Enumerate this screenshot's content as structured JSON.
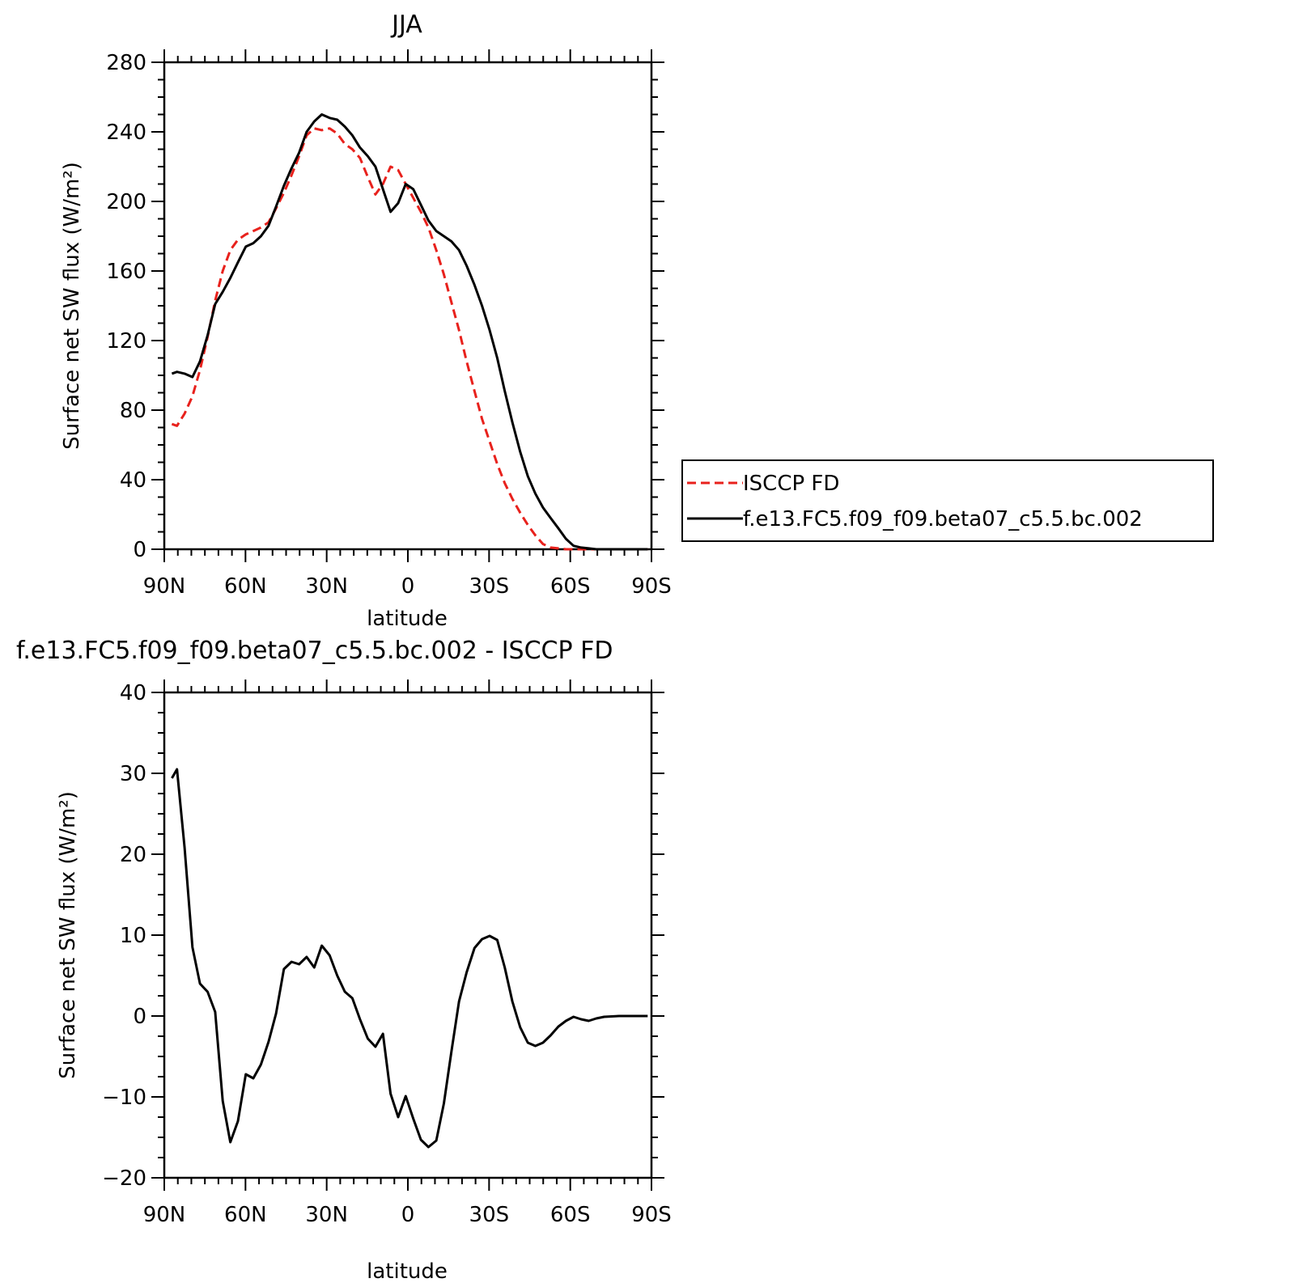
{
  "chart_data": [
    {
      "type": "line",
      "title": "JJA",
      "xlabel": "latitude",
      "ylabel": "Surface net SW flux (W/m²)",
      "xlim": [
        90,
        -90
      ],
      "ylim": [
        0,
        280
      ],
      "yticks": [
        0,
        40,
        80,
        120,
        160,
        200,
        240,
        280
      ],
      "xticks": [
        90,
        60,
        30,
        0,
        -30,
        -60,
        -90
      ],
      "xtick_labels": [
        "90N",
        "60N",
        "30N",
        "0",
        "30S",
        "60S",
        "90S"
      ],
      "legend_position": "right",
      "series": [
        {
          "name": "ISCCP FD",
          "color": "#e8211c",
          "dash": "dashed",
          "x": [
            87.2,
            85.3,
            82.5,
            79.6,
            76.8,
            74.0,
            71.2,
            68.4,
            65.6,
            62.8,
            59.9,
            57.1,
            54.3,
            51.5,
            48.7,
            45.8,
            43.0,
            40.2,
            37.4,
            34.6,
            31.8,
            28.9,
            26.1,
            23.3,
            20.5,
            17.7,
            14.8,
            12.0,
            9.2,
            6.4,
            3.6,
            0.8,
            -2.0,
            -4.8,
            -7.6,
            -10.5,
            -13.3,
            -16.1,
            -18.9,
            -21.7,
            -24.6,
            -27.4,
            -30.2,
            -33.0,
            -35.8,
            -38.6,
            -41.5,
            -44.3,
            -47.1,
            -49.9,
            -52.7,
            -55.6,
            -58.4,
            -61.2,
            -64.0,
            -66.8,
            -69.6,
            -72.5,
            -75.3,
            -78.1,
            -80.9,
            -83.7,
            -86.6,
            -88.6
          ],
          "y": [
            72,
            71,
            78,
            88,
            103,
            122,
            143,
            160,
            172,
            178,
            181,
            183,
            185,
            188,
            196,
            205,
            215,
            226,
            238,
            242,
            241,
            242,
            239,
            233,
            230,
            225,
            214,
            204,
            210,
            220,
            218,
            210,
            202,
            194,
            185,
            172,
            158,
            142,
            126,
            108,
            91,
            75,
            62,
            49,
            38,
            29,
            21,
            14,
            8,
            3,
            1,
            0.5,
            0,
            0,
            0,
            0,
            0,
            0,
            0,
            0,
            0,
            0,
            0,
            0
          ]
        },
        {
          "name": "f.e13.FC5.f09_f09.beta07_c5.5.bc.002",
          "color": "#000000",
          "dash": "solid",
          "x": [
            87.2,
            85.3,
            82.5,
            79.6,
            76.8,
            74.0,
            71.2,
            68.4,
            65.6,
            62.8,
            59.9,
            57.1,
            54.3,
            51.5,
            48.7,
            45.8,
            43.0,
            40.2,
            37.4,
            34.6,
            31.8,
            28.9,
            26.1,
            23.3,
            20.5,
            17.7,
            14.8,
            12.0,
            9.2,
            6.4,
            3.6,
            0.8,
            -2.0,
            -4.8,
            -7.6,
            -10.5,
            -13.3,
            -16.1,
            -18.9,
            -21.7,
            -24.6,
            -27.4,
            -30.2,
            -33.0,
            -35.8,
            -38.6,
            -41.5,
            -44.3,
            -47.1,
            -49.9,
            -52.7,
            -55.6,
            -58.4,
            -61.2,
            -64.0,
            -66.8,
            -69.6,
            -72.5,
            -75.3,
            -78.1,
            -80.9,
            -83.7,
            -86.6,
            -88.6
          ],
          "y": [
            101,
            102,
            101,
            99,
            108,
            123,
            141,
            148,
            156,
            165,
            174,
            176,
            180,
            186,
            197,
            209,
            219,
            228,
            240,
            246,
            250,
            248,
            247,
            243,
            238,
            231,
            226,
            220,
            207,
            194,
            199,
            210,
            207,
            198,
            189,
            183,
            180,
            177,
            172,
            163,
            152,
            140,
            126,
            110,
            91,
            73,
            56,
            42,
            32,
            24,
            18,
            12,
            6,
            2,
            1,
            0.5,
            0,
            0,
            0,
            0,
            0,
            0,
            0,
            0
          ]
        }
      ]
    },
    {
      "type": "line",
      "title": "f.e13.FC5.f09_f09.beta07_c5.5.bc.002 - ISCCP FD",
      "xlabel": "latitude",
      "ylabel": "Surface net SW flux (W/m²)",
      "xlim": [
        90,
        -90
      ],
      "ylim": [
        -20,
        40
      ],
      "yticks": [
        -20,
        -10,
        0,
        10,
        20,
        30,
        40
      ],
      "ytick_labels": [
        "−20",
        "−10",
        "0",
        "10",
        "20",
        "30",
        "40"
      ],
      "xticks": [
        90,
        60,
        30,
        0,
        -30,
        -60,
        -90
      ],
      "xtick_labels": [
        "90N",
        "60N",
        "30N",
        "0",
        "30S",
        "60S",
        "90S"
      ],
      "series": [
        {
          "color": "#000000",
          "dash": "solid",
          "x": [
            87.2,
            85.3,
            82.5,
            79.6,
            76.8,
            74.0,
            71.2,
            68.4,
            65.6,
            62.8,
            59.9,
            57.1,
            54.3,
            51.5,
            48.7,
            45.8,
            43.0,
            40.2,
            37.4,
            34.6,
            31.8,
            28.9,
            26.1,
            23.3,
            20.5,
            17.7,
            14.8,
            12.0,
            9.2,
            6.4,
            3.6,
            0.8,
            -2.0,
            -4.8,
            -7.6,
            -10.5,
            -13.3,
            -16.1,
            -18.9,
            -21.7,
            -24.6,
            -27.4,
            -30.2,
            -33.0,
            -35.8,
            -38.6,
            -41.5,
            -44.3,
            -47.1,
            -49.9,
            -52.7,
            -55.6,
            -58.4,
            -61.2,
            -64.0,
            -66.8,
            -69.6,
            -72.5,
            -75.3,
            -78.1,
            -80.9,
            -83.7,
            -86.6,
            -88.6
          ],
          "y": [
            29.4,
            30.5,
            20.8,
            8.5,
            4.0,
            3.0,
            0.5,
            -10.5,
            -15.6,
            -13.0,
            -7.2,
            -7.7,
            -6.0,
            -3.2,
            0.3,
            5.8,
            6.7,
            6.4,
            7.3,
            6.0,
            8.7,
            7.5,
            5.0,
            3.0,
            2.2,
            -0.4,
            -2.8,
            -3.8,
            -2.2,
            -9.6,
            -12.5,
            -9.9,
            -12.7,
            -15.3,
            -16.2,
            -15.4,
            -10.8,
            -4.4,
            1.8,
            5.4,
            8.4,
            9.5,
            9.9,
            9.4,
            6.0,
            1.8,
            -1.4,
            -3.3,
            -3.7,
            -3.3,
            -2.4,
            -1.3,
            -0.6,
            -0.1,
            -0.4,
            -0.6,
            -0.3,
            -0.1,
            -0.05,
            0,
            0,
            0,
            0,
            0
          ]
        }
      ]
    }
  ]
}
